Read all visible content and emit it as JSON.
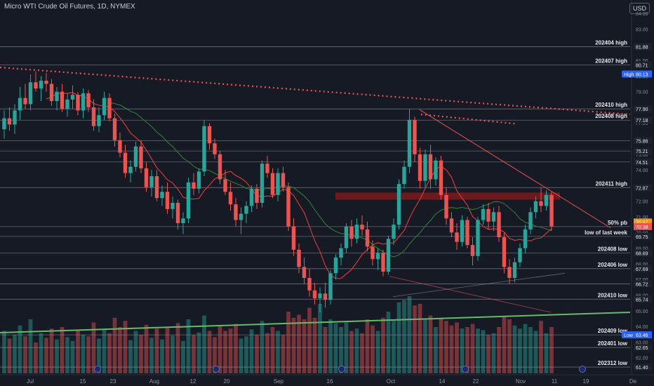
{
  "header": {
    "symbol_title": "Micro WTI Crude Oil Futures, 1D, NYMEX",
    "currency": "USD"
  },
  "colors": {
    "background": "#161a25",
    "bull": "#26a69a",
    "bear": "#ef5350",
    "ma_red": "#e53935",
    "ma_green": "#2e7d32",
    "trendline": "#ef5350",
    "support_zone": "#b71c1c",
    "uptrend_line": "#66bb6a",
    "level_line": "#8a8e99"
  },
  "chart_data": {
    "type": "candlestick",
    "x_axis": {
      "tick_labels": [
        "Jul",
        "15",
        "23",
        "Aug",
        "12",
        "20",
        "Sep",
        "16",
        "Oct",
        "14",
        "22",
        "Nov",
        "11",
        "19",
        "De"
      ]
    },
    "y_axis": {
      "range": [
        61,
        84.5
      ],
      "tick_labels": [
        "84.00",
        "83.00",
        "82.00",
        "81.00",
        "80.00",
        "79.00",
        "78.00",
        "77.00",
        "76.00",
        "75.00",
        "74.00",
        "73.00",
        "72.00",
        "71.00",
        "70.00",
        "69.00",
        "68.00",
        "67.00",
        "66.00",
        "65.00",
        "64.00",
        "63.00",
        "62.00"
      ]
    },
    "levels": [
      {
        "label": "202404 high",
        "price_label": "81.88",
        "value": 81.88
      },
      {
        "label": "202407 high",
        "price_label": "80.71",
        "value": 80.71
      },
      {
        "label": "202410 high",
        "price_label": "77.90",
        "value": 77.9
      },
      {
        "label": "202408 high",
        "price_label": "77.18",
        "value": 77.18
      },
      {
        "label": "",
        "price_label": "75.86",
        "value": 75.86
      },
      {
        "label": "",
        "price_label": "75.21",
        "value": 75.21
      },
      {
        "label": "",
        "price_label": "74.51",
        "value": 74.51
      },
      {
        "label": "202411 high",
        "price_label": "72.87",
        "value": 72.87
      },
      {
        "label": "50% pb",
        "price_label": "70.38",
        "value": 70.38
      },
      {
        "label": "low of last week",
        "price_label": "69.75",
        "value": 69.75
      },
      {
        "label": "202408 low",
        "price_label": "68.69",
        "value": 68.69
      },
      {
        "label": "202406 low",
        "price_label": "67.69",
        "value": 67.69
      },
      {
        "label": "",
        "price_label": "66.72",
        "value": 66.72
      },
      {
        "label": "202410 low",
        "price_label": "65.74",
        "value": 65.74
      },
      {
        "label": "202409 low",
        "price_label": "63.46",
        "value": 63.46
      },
      {
        "label": "202401 low",
        "price_label": "62.65",
        "value": 62.65
      },
      {
        "label": "202312 low",
        "price_label": "61.40",
        "value": 61.4
      }
    ],
    "price_badges": [
      {
        "text": "High",
        "value": 80.13,
        "price": "80.13",
        "color": "#2962ff"
      },
      {
        "text": "",
        "value": 70.67,
        "price": "70.67",
        "color": "#ff9800"
      },
      {
        "text": "",
        "value": 70.38,
        "price": "70.38",
        "color": "#ef5350"
      },
      {
        "text": "Low",
        "value": 63.46,
        "price": "63.46",
        "color": "#2962ff"
      }
    ],
    "candles": [
      [
        76.6,
        77.8,
        76.0,
        77.3
      ],
      [
        77.3,
        78.0,
        76.5,
        76.9
      ],
      [
        76.9,
        78.2,
        76.3,
        77.8
      ],
      [
        77.8,
        79.3,
        77.2,
        78.6
      ],
      [
        78.6,
        79.5,
        77.9,
        78.2
      ],
      [
        78.2,
        80.1,
        77.8,
        79.6
      ],
      [
        79.6,
        80.3,
        79.0,
        79.2
      ],
      [
        79.2,
        80.0,
        78.4,
        79.7
      ],
      [
        79.7,
        80.2,
        79.0,
        79.5
      ],
      [
        79.5,
        79.8,
        78.1,
        78.4
      ],
      [
        78.4,
        79.3,
        77.8,
        79.0
      ],
      [
        79.0,
        79.5,
        77.7,
        77.9
      ],
      [
        77.9,
        78.9,
        77.4,
        78.5
      ],
      [
        78.5,
        79.4,
        77.9,
        78.8
      ],
      [
        78.8,
        79.0,
        77.5,
        77.8
      ],
      [
        77.8,
        79.2,
        77.3,
        78.9
      ],
      [
        78.9,
        79.1,
        77.7,
        78.0
      ],
      [
        78.0,
        78.5,
        76.5,
        76.8
      ],
      [
        76.8,
        78.0,
        76.4,
        77.5
      ],
      [
        77.5,
        79.0,
        77.2,
        78.6
      ],
      [
        78.6,
        78.9,
        77.1,
        77.3
      ],
      [
        77.3,
        77.6,
        75.5,
        75.9
      ],
      [
        75.9,
        76.4,
        74.8,
        75.1
      ],
      [
        75.1,
        75.6,
        73.5,
        73.8
      ],
      [
        73.8,
        74.6,
        73.2,
        74.2
      ],
      [
        74.2,
        75.8,
        73.9,
        75.5
      ],
      [
        75.5,
        75.9,
        73.8,
        74.1
      ],
      [
        74.1,
        74.5,
        72.6,
        72.9
      ],
      [
        72.9,
        74.0,
        72.3,
        73.6
      ],
      [
        73.6,
        74.0,
        72.0,
        72.2
      ],
      [
        72.2,
        73.0,
        71.7,
        72.6
      ],
      [
        72.6,
        73.2,
        71.2,
        71.5
      ],
      [
        71.5,
        72.3,
        70.9,
        71.9
      ],
      [
        71.9,
        72.1,
        70.2,
        70.6
      ],
      [
        70.6,
        71.3,
        69.9,
        70.9
      ],
      [
        70.9,
        73.5,
        70.6,
        73.2
      ],
      [
        73.2,
        73.8,
        72.4,
        72.8
      ],
      [
        72.8,
        74.1,
        72.5,
        73.9
      ],
      [
        73.9,
        77.2,
        73.6,
        76.8
      ],
      [
        76.8,
        77.0,
        75.3,
        75.7
      ],
      [
        75.7,
        76.0,
        74.7,
        75.0
      ],
      [
        75.0,
        75.2,
        73.1,
        73.4
      ],
      [
        73.4,
        74.0,
        72.4,
        72.6
      ],
      [
        72.6,
        73.2,
        71.4,
        71.8
      ],
      [
        71.8,
        72.2,
        70.4,
        70.8
      ],
      [
        70.8,
        71.6,
        69.9,
        71.2
      ],
      [
        71.2,
        72.0,
        70.6,
        71.7
      ],
      [
        71.7,
        73.0,
        71.3,
        72.8
      ],
      [
        72.8,
        73.1,
        71.5,
        71.9
      ],
      [
        71.9,
        74.6,
        71.6,
        74.4
      ],
      [
        74.4,
        74.9,
        73.5,
        73.8
      ],
      [
        73.8,
        74.1,
        72.2,
        72.4
      ],
      [
        72.4,
        74.1,
        72.0,
        73.8
      ],
      [
        73.8,
        74.2,
        72.6,
        72.9
      ],
      [
        72.9,
        73.2,
        70.1,
        70.4
      ],
      [
        70.4,
        70.9,
        68.5,
        68.9
      ],
      [
        68.9,
        69.3,
        67.4,
        67.8
      ],
      [
        67.8,
        68.4,
        66.7,
        67.1
      ],
      [
        67.1,
        67.7,
        65.9,
        66.3
      ],
      [
        66.3,
        66.8,
        65.4,
        65.8
      ],
      [
        65.8,
        66.5,
        64.9,
        66.1
      ],
      [
        66.1,
        66.8,
        65.2,
        65.7
      ],
      [
        65.7,
        67.6,
        65.4,
        67.4
      ],
      [
        67.4,
        68.6,
        67.0,
        68.4
      ],
      [
        68.4,
        69.3,
        67.9,
        69.0
      ],
      [
        69.0,
        70.6,
        68.7,
        70.4
      ],
      [
        70.4,
        70.8,
        69.1,
        69.6
      ],
      [
        69.6,
        70.9,
        69.3,
        70.5
      ],
      [
        70.5,
        71.1,
        69.8,
        70.2
      ],
      [
        70.2,
        70.7,
        68.8,
        69.1
      ],
      [
        69.1,
        69.5,
        67.9,
        68.3
      ],
      [
        68.3,
        69.0,
        67.6,
        68.7
      ],
      [
        68.7,
        68.9,
        67.2,
        67.5
      ],
      [
        67.5,
        69.8,
        67.3,
        69.6
      ],
      [
        69.6,
        70.9,
        69.2,
        70.5
      ],
      [
        70.5,
        73.4,
        70.2,
        73.1
      ],
      [
        73.1,
        74.6,
        72.8,
        74.2
      ],
      [
        74.2,
        77.9,
        73.8,
        77.2
      ],
      [
        77.2,
        77.4,
        74.5,
        75.0
      ],
      [
        75.0,
        75.4,
        72.8,
        73.3
      ],
      [
        73.3,
        75.3,
        72.9,
        75.0
      ],
      [
        75.0,
        75.6,
        72.8,
        73.4
      ],
      [
        73.4,
        74.8,
        73.0,
        74.6
      ],
      [
        74.6,
        74.9,
        72.1,
        72.4
      ],
      [
        72.4,
        72.9,
        70.5,
        70.9
      ],
      [
        70.9,
        71.3,
        69.7,
        70.0
      ],
      [
        70.0,
        70.6,
        68.9,
        69.4
      ],
      [
        69.4,
        71.1,
        69.1,
        70.8
      ],
      [
        70.8,
        71.0,
        69.0,
        69.2
      ],
      [
        69.2,
        69.7,
        67.9,
        68.5
      ],
      [
        68.5,
        71.0,
        68.2,
        70.8
      ],
      [
        70.8,
        71.8,
        70.5,
        71.5
      ],
      [
        71.5,
        71.9,
        70.2,
        70.7
      ],
      [
        70.7,
        71.6,
        70.1,
        71.3
      ],
      [
        71.3,
        71.7,
        69.4,
        69.7
      ],
      [
        69.7,
        70.0,
        67.4,
        67.8
      ],
      [
        67.8,
        68.3,
        66.7,
        67.1
      ],
      [
        67.1,
        68.4,
        66.8,
        68.1
      ],
      [
        68.1,
        69.3,
        67.8,
        69.0
      ],
      [
        69.0,
        70.5,
        68.7,
        70.2
      ],
      [
        70.2,
        71.6,
        69.9,
        71.3
      ],
      [
        71.3,
        72.3,
        70.9,
        72.0
      ],
      [
        72.0,
        72.9,
        71.3,
        71.7
      ],
      [
        71.7,
        72.7,
        71.4,
        72.4
      ],
      [
        72.4,
        72.6,
        70.1,
        70.4
      ]
    ],
    "volumes": [
      [
        0.55,
        1
      ],
      [
        0.45,
        0
      ],
      [
        0.5,
        1
      ],
      [
        0.62,
        1
      ],
      [
        0.48,
        0
      ],
      [
        0.7,
        1
      ],
      [
        0.4,
        0
      ],
      [
        0.52,
        1
      ],
      [
        0.46,
        0
      ],
      [
        0.58,
        0
      ],
      [
        0.44,
        1
      ],
      [
        0.6,
        0
      ],
      [
        0.47,
        1
      ],
      [
        0.42,
        1
      ],
      [
        0.56,
        0
      ],
      [
        0.5,
        1
      ],
      [
        0.48,
        0
      ],
      [
        0.66,
        0
      ],
      [
        0.45,
        1
      ],
      [
        0.57,
        1
      ],
      [
        0.52,
        0
      ],
      [
        0.72,
        0
      ],
      [
        0.6,
        0
      ],
      [
        0.68,
        0
      ],
      [
        0.43,
        1
      ],
      [
        0.55,
        1
      ],
      [
        0.5,
        0
      ],
      [
        0.63,
        0
      ],
      [
        0.46,
        1
      ],
      [
        0.58,
        0
      ],
      [
        0.44,
        1
      ],
      [
        0.6,
        0
      ],
      [
        0.49,
        1
      ],
      [
        0.65,
        0
      ],
      [
        0.42,
        1
      ],
      [
        0.7,
        1
      ],
      [
        0.5,
        0
      ],
      [
        0.53,
        1
      ],
      [
        0.75,
        1
      ],
      [
        0.55,
        0
      ],
      [
        0.47,
        0
      ],
      [
        0.62,
        0
      ],
      [
        0.55,
        0
      ],
      [
        0.58,
        0
      ],
      [
        0.64,
        0
      ],
      [
        0.45,
        1
      ],
      [
        0.48,
        1
      ],
      [
        0.57,
        1
      ],
      [
        0.5,
        0
      ],
      [
        0.68,
        1
      ],
      [
        0.52,
        0
      ],
      [
        0.6,
        0
      ],
      [
        0.55,
        1
      ],
      [
        0.5,
        0
      ],
      [
        0.8,
        0
      ],
      [
        0.72,
        0
      ],
      [
        0.76,
        0
      ],
      [
        0.7,
        0
      ],
      [
        0.85,
        0
      ],
      [
        0.72,
        0
      ],
      [
        0.9,
        1
      ],
      [
        0.6,
        0
      ],
      [
        0.7,
        1
      ],
      [
        0.65,
        1
      ],
      [
        0.6,
        1
      ],
      [
        0.66,
        1
      ],
      [
        0.55,
        0
      ],
      [
        0.58,
        1
      ],
      [
        0.52,
        0
      ],
      [
        0.7,
        0
      ],
      [
        0.62,
        0
      ],
      [
        0.55,
        1
      ],
      [
        0.72,
        0
      ],
      [
        0.8,
        1
      ],
      [
        0.68,
        1
      ],
      [
        0.92,
        1
      ],
      [
        0.95,
        1
      ],
      [
        1.0,
        1
      ],
      [
        0.88,
        0
      ],
      [
        0.9,
        0
      ],
      [
        0.7,
        1
      ],
      [
        0.75,
        0
      ],
      [
        0.6,
        1
      ],
      [
        0.72,
        0
      ],
      [
        0.68,
        0
      ],
      [
        0.62,
        0
      ],
      [
        0.66,
        0
      ],
      [
        0.58,
        1
      ],
      [
        0.6,
        0
      ],
      [
        0.64,
        0
      ],
      [
        0.58,
        1
      ],
      [
        0.56,
        1
      ],
      [
        0.5,
        0
      ],
      [
        0.52,
        1
      ],
      [
        0.6,
        0
      ],
      [
        0.74,
        0
      ],
      [
        0.7,
        0
      ],
      [
        0.62,
        1
      ],
      [
        0.58,
        1
      ],
      [
        0.64,
        1
      ],
      [
        0.6,
        1
      ],
      [
        0.55,
        1
      ],
      [
        0.68,
        0
      ],
      [
        0.52,
        1
      ],
      [
        0.6,
        0
      ]
    ]
  }
}
